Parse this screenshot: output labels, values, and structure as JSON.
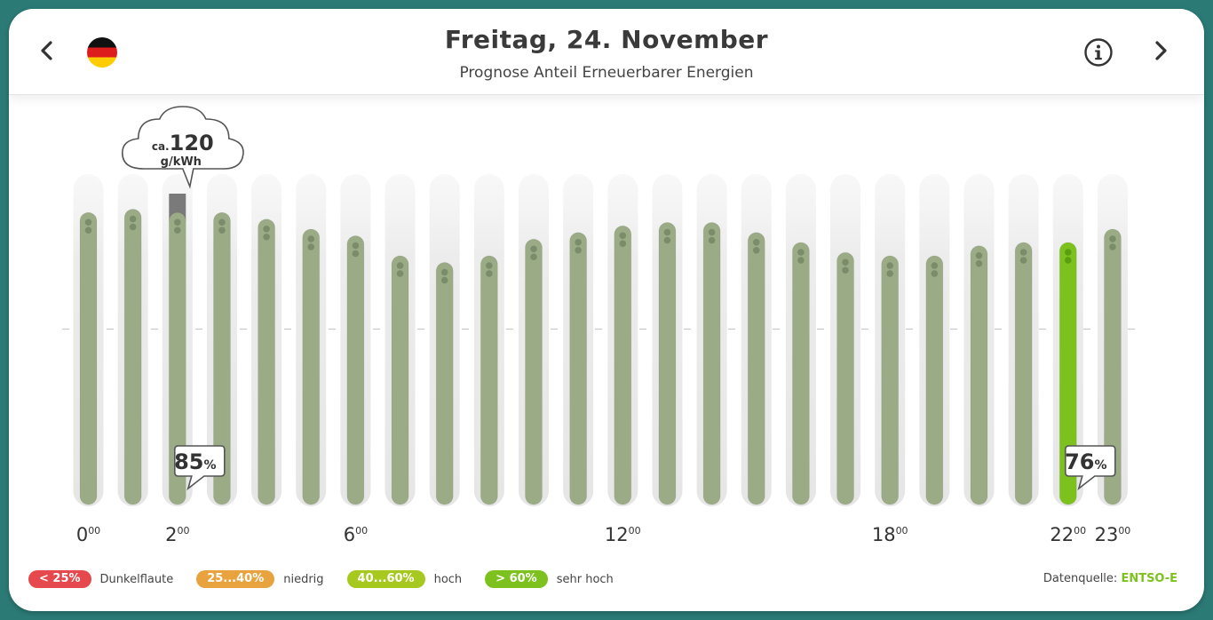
{
  "header": {
    "title": "Freitag, 24. November",
    "subtitle": "Prognose Anteil Erneuerbarer Energien"
  },
  "icons": {
    "prev": "chevron-left-icon",
    "next": "chevron-right-icon",
    "flag": "germany-flag-icon",
    "info": "info-icon"
  },
  "chart_data": {
    "type": "bar",
    "categories": [
      "0",
      "1",
      "2",
      "3",
      "4",
      "5",
      "6",
      "7",
      "8",
      "9",
      "10",
      "11",
      "12",
      "13",
      "14",
      "15",
      "16",
      "17",
      "18",
      "19",
      "20",
      "21",
      "22",
      "23"
    ],
    "values": [
      85,
      86,
      85,
      85,
      83,
      80,
      78,
      72,
      70,
      72,
      77,
      79,
      81,
      82,
      82,
      79,
      76,
      73,
      72,
      72,
      75,
      76,
      76,
      80
    ],
    "ylim": [
      0,
      100
    ],
    "x_tick_labels": [
      {
        "hour": "0",
        "label": "0",
        "sup": "00"
      },
      {
        "hour": "2",
        "label": "2",
        "sup": "00"
      },
      {
        "hour": "6",
        "label": "6",
        "sup": "00"
      },
      {
        "hour": "12",
        "label": "12",
        "sup": "00"
      },
      {
        "hour": "18",
        "label": "18",
        "sup": "00"
      },
      {
        "hour": "22",
        "label": "22",
        "sup": "00"
      },
      {
        "hour": "23",
        "label": "23",
        "sup": "00"
      }
    ],
    "highlighted_hour": 22,
    "selected_hour": 2,
    "callouts": [
      {
        "hour": "2",
        "value": "85",
        "unit": "%"
      },
      {
        "hour": "22",
        "value": "76",
        "unit": "%"
      }
    ],
    "co2_callout": {
      "hour": "2",
      "prefix": "ca.",
      "value": "120",
      "unit": "g/kWh"
    },
    "colors": {
      "bar": "#9aab86",
      "bar_highlight": "#7dc11f",
      "track": "#eeeeee",
      "co2_bar": "#7a7a7a"
    }
  },
  "legend": [
    {
      "range": "< 25%",
      "label": "Dunkelflaute",
      "color": "#e5484d"
    },
    {
      "range": "25...40%",
      "label": "niedrig",
      "color": "#e8a23e"
    },
    {
      "range": "40...60%",
      "label": "hoch",
      "color": "#a6c81f"
    },
    {
      "range": "> 60%",
      "label": "sehr hoch",
      "color": "#7dc11f"
    }
  ],
  "source": {
    "label": "Datenquelle:",
    "name": "ENTSO-E"
  }
}
